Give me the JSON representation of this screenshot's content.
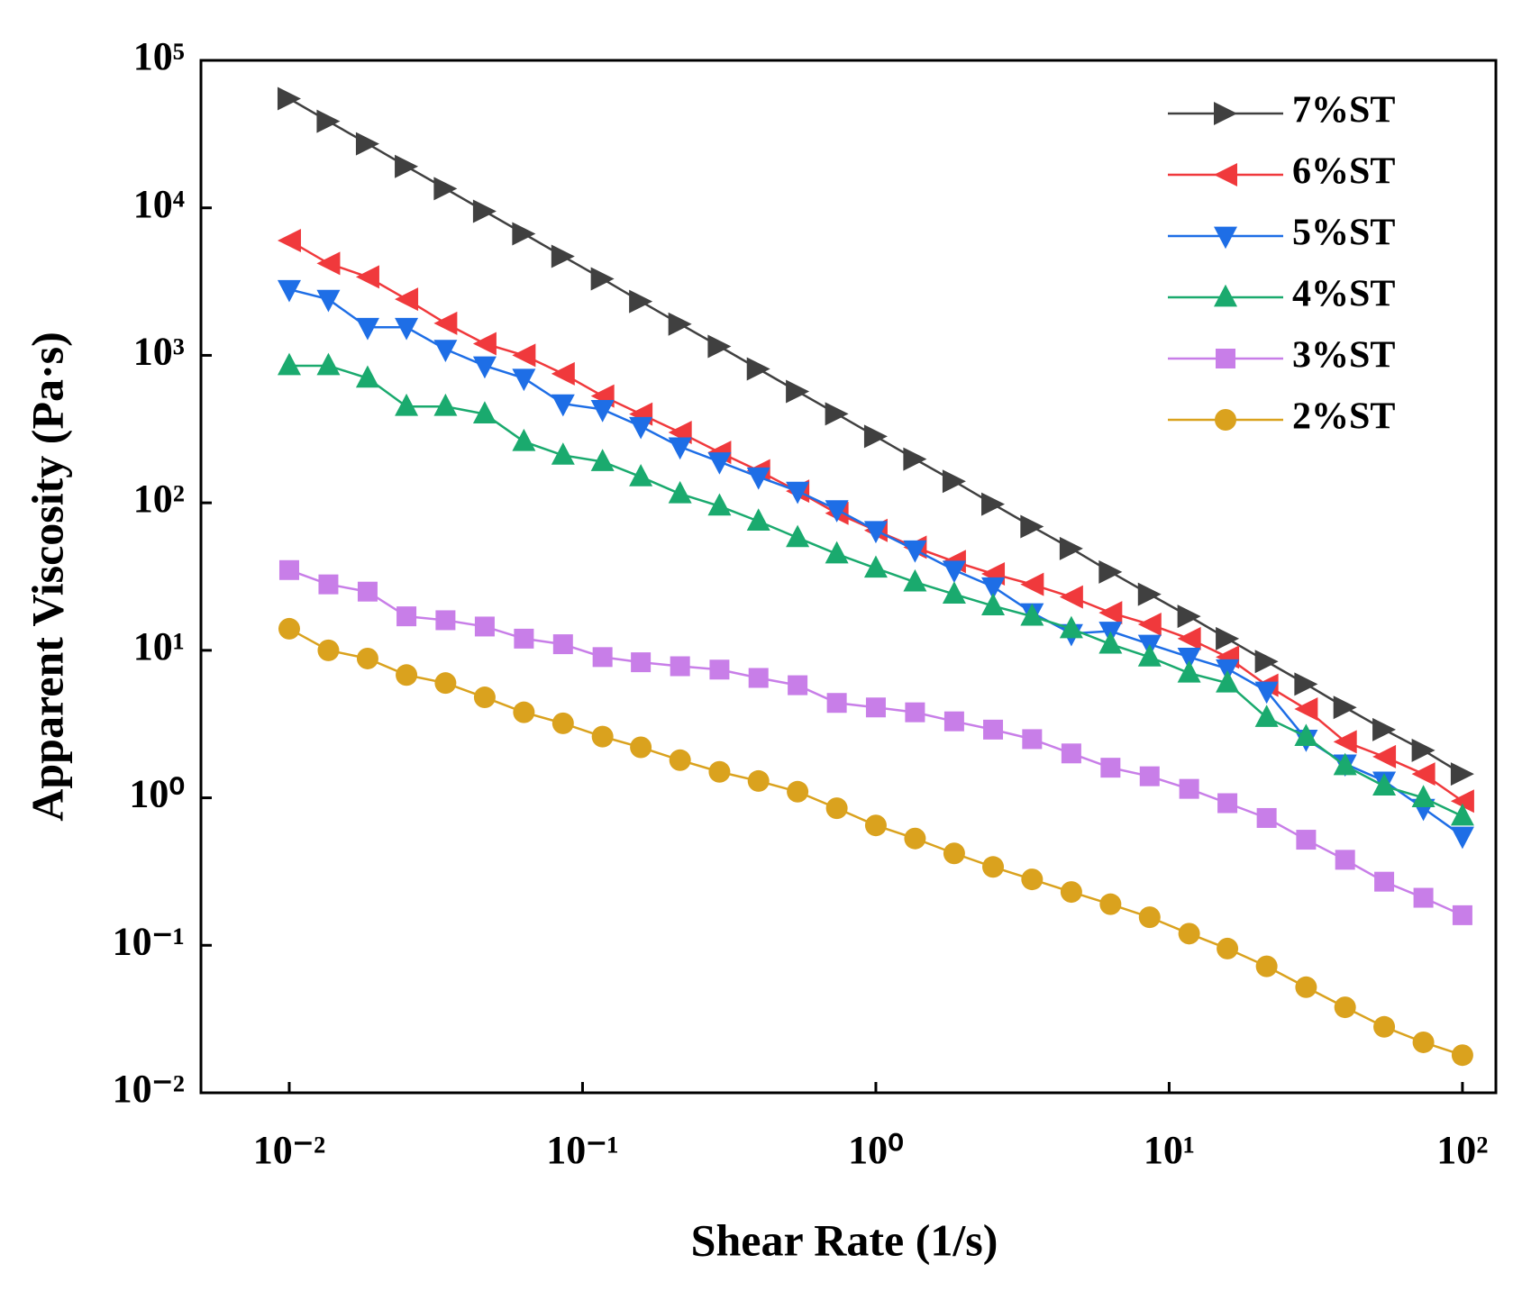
{
  "chart_data": {
    "type": "line",
    "x_label": "Shear Rate (1/s)",
    "y_label": "Apparent Viscosity (Pa·s)",
    "x_log": true,
    "y_log": true,
    "legend": "upper right",
    "xlim": [
      0.005,
      130
    ],
    "ylim": [
      0.01,
      100000
    ],
    "xticks": [
      {
        "value": 0.01,
        "label": "10⁻²"
      },
      {
        "value": 0.1,
        "label": "10⁻¹"
      },
      {
        "value": 1,
        "label": "10⁰"
      },
      {
        "value": 10,
        "label": "10¹"
      },
      {
        "value": 100,
        "label": "10²"
      }
    ],
    "yticks": [
      {
        "value": 0.01,
        "label": "10⁻²"
      },
      {
        "value": 0.1,
        "label": "10⁻¹"
      },
      {
        "value": 1,
        "label": "10⁰"
      },
      {
        "value": 10,
        "label": "10¹"
      },
      {
        "value": 100,
        "label": "10²"
      },
      {
        "value": 1000,
        "label": "10³"
      },
      {
        "value": 10000,
        "label": "10⁴"
      },
      {
        "value": 100000,
        "label": "10⁵"
      }
    ],
    "x": [
      0.01,
      0.0136,
      0.0185,
      0.0251,
      0.0341,
      0.0464,
      0.0631,
      0.0858,
      0.117,
      0.158,
      0.215,
      0.293,
      0.398,
      0.541,
      0.736,
      1,
      1.36,
      1.85,
      2.51,
      3.41,
      4.64,
      6.31,
      8.58,
      11.7,
      15.8,
      21.5,
      29.3,
      39.8,
      54.1,
      73.6,
      100
    ],
    "series": [
      {
        "name": "7%ST",
        "color": "#404040",
        "marker": "triangle-right",
        "values": [
          55000,
          38600,
          27200,
          19100,
          13500,
          9480,
          6670,
          4690,
          3300,
          2320,
          1630,
          1150,
          809,
          569,
          401,
          282,
          198,
          140,
          98,
          69,
          49,
          34,
          24,
          17,
          12,
          8.4,
          5.9,
          4.1,
          2.9,
          2.1,
          1.45
        ]
      },
      {
        "name": "6%ST",
        "color": "#f0393c",
        "marker": "triangle-left",
        "values": [
          6000,
          4200,
          3400,
          2400,
          1650,
          1200,
          1000,
          750,
          530,
          400,
          300,
          220,
          165,
          120,
          85,
          65,
          50,
          40,
          33,
          28,
          23,
          18,
          15,
          12,
          9,
          5.8,
          4,
          2.4,
          1.9,
          1.45,
          0.95
        ]
      },
      {
        "name": "5%ST",
        "color": "#1e6ee6",
        "marker": "triangle-down",
        "values": [
          2800,
          2400,
          1550,
          1550,
          1100,
          850,
          700,
          470,
          430,
          330,
          240,
          190,
          150,
          120,
          90,
          65,
          48,
          35,
          27,
          18,
          13,
          13.5,
          11,
          9,
          7.5,
          5.3,
          2.5,
          1.7,
          1.3,
          0.85,
          0.55
        ]
      },
      {
        "name": "4%ST",
        "color": "#1aaa6e",
        "marker": "triangle-up",
        "values": [
          850,
          850,
          700,
          450,
          450,
          400,
          260,
          210,
          190,
          150,
          115,
          95,
          75,
          58,
          45,
          36,
          29,
          24,
          20,
          17,
          14,
          11,
          9,
          7,
          6,
          3.5,
          2.6,
          1.65,
          1.2,
          1.0,
          0.75
        ]
      },
      {
        "name": "3%ST",
        "color": "#c87ee8",
        "marker": "square",
        "values": [
          35,
          28,
          25,
          17,
          16,
          14.5,
          12,
          11,
          9,
          8.3,
          7.8,
          7.4,
          6.5,
          5.8,
          4.4,
          4.1,
          3.8,
          3.3,
          2.9,
          2.5,
          2.0,
          1.6,
          1.4,
          1.15,
          0.92,
          0.73,
          0.52,
          0.38,
          0.27,
          0.21,
          0.16
        ]
      },
      {
        "name": "2%ST",
        "color": "#daa21e",
        "marker": "circle",
        "values": [
          14,
          10,
          8.8,
          6.8,
          6,
          4.8,
          3.8,
          3.2,
          2.6,
          2.2,
          1.8,
          1.5,
          1.3,
          1.1,
          0.85,
          0.65,
          0.53,
          0.42,
          0.34,
          0.28,
          0.23,
          0.19,
          0.155,
          0.12,
          0.095,
          0.072,
          0.052,
          0.038,
          0.028,
          0.022,
          0.018
        ]
      }
    ]
  }
}
